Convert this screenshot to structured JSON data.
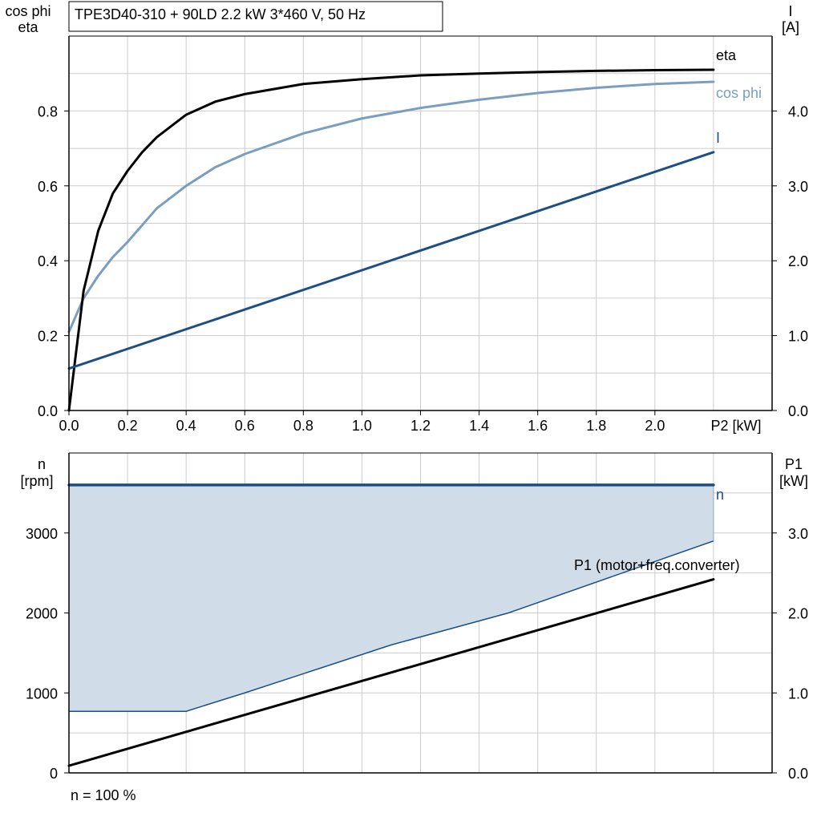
{
  "colors": {
    "eta": "#000000",
    "cos_phi": "#7a9fbe",
    "current": "#1b4f86",
    "speed": "#1b4f86",
    "p1": "#000000",
    "band_fill": "#d0dce8",
    "grid": "#cccccc",
    "axis": "#000000"
  },
  "chart_data": [
    {
      "type": "line",
      "title": "TPE3D40-310 + 90LD   2.2 kW   3*460 V, 50 Hz",
      "xlabel": "P2 [kW]",
      "ylabel_left": [
        "cos phi",
        "eta"
      ],
      "ylabel_right": [
        "I",
        "[A]"
      ],
      "xlim": [
        0,
        2.4
      ],
      "ylim_left": [
        0,
        1.0
      ],
      "ylim_right": [
        0,
        5.0
      ],
      "x_ticks": [
        "0.0",
        "0.2",
        "0.4",
        "0.6",
        "0.8",
        "1.0",
        "1.2",
        "1.4",
        "1.6",
        "1.8",
        "2.0"
      ],
      "y_ticks_left": [
        "0.0",
        "0.2",
        "0.4",
        "0.6",
        "0.8"
      ],
      "y_ticks_right": [
        "0.0",
        "1.0",
        "2.0",
        "3.0",
        "4.0"
      ],
      "grid": true,
      "series": [
        {
          "name": "eta",
          "axis": "left",
          "x": [
            0,
            0.05,
            0.1,
            0.15,
            0.2,
            0.25,
            0.3,
            0.4,
            0.5,
            0.6,
            0.8,
            1.0,
            1.2,
            1.4,
            1.6,
            1.8,
            2.0,
            2.2
          ],
          "y": [
            0.0,
            0.32,
            0.48,
            0.58,
            0.64,
            0.69,
            0.73,
            0.79,
            0.825,
            0.845,
            0.872,
            0.885,
            0.895,
            0.9,
            0.904,
            0.907,
            0.909,
            0.91
          ]
        },
        {
          "name": "cos phi",
          "axis": "left",
          "x": [
            0,
            0.05,
            0.1,
            0.15,
            0.2,
            0.3,
            0.4,
            0.5,
            0.6,
            0.8,
            1.0,
            1.2,
            1.4,
            1.6,
            1.8,
            2.0,
            2.2
          ],
          "y": [
            0.21,
            0.3,
            0.36,
            0.41,
            0.45,
            0.54,
            0.6,
            0.65,
            0.685,
            0.74,
            0.78,
            0.808,
            0.83,
            0.848,
            0.862,
            0.872,
            0.878
          ]
        },
        {
          "name": "I",
          "axis": "right",
          "x": [
            0,
            2.2
          ],
          "y": [
            0.56,
            3.45
          ]
        }
      ]
    },
    {
      "type": "area",
      "ylabel_left": [
        "n",
        "[rpm]"
      ],
      "ylabel_right": [
        "P1",
        "[kW]"
      ],
      "footnote": "n = 100 %",
      "xlim": [
        0,
        2.4
      ],
      "ylim_left": [
        0,
        4000
      ],
      "ylim_right": [
        0,
        4.0
      ],
      "y_ticks_left": [
        "0",
        "1000",
        "2000",
        "3000"
      ],
      "y_ticks_right": [
        "0.0",
        "1.0",
        "2.0",
        "3.0"
      ],
      "grid": true,
      "series": [
        {
          "name": "n",
          "axis": "left",
          "x": [
            0,
            2.2
          ],
          "y": [
            3600,
            3600
          ]
        },
        {
          "name": "P1 (motor+freq.converter)",
          "axis": "right",
          "x": [
            0,
            2.2
          ],
          "y": [
            0.09,
            2.42
          ]
        }
      ],
      "band_lower": {
        "axis": "right",
        "x": [
          0,
          0.4,
          0.6,
          1.1,
          1.5,
          2.2
        ],
        "y": [
          0.77,
          0.77,
          1.0,
          1.6,
          2.0,
          2.9
        ]
      }
    }
  ]
}
